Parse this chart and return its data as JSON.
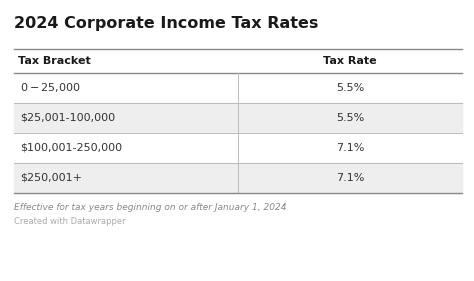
{
  "title": "2024 Corporate Income Tax Rates",
  "col_headers": [
    "Tax Bracket",
    "Tax Rate"
  ],
  "rows": [
    [
      "$0-$25,000",
      "5.5%"
    ],
    [
      "$25,001-100,000",
      "5.5%"
    ],
    [
      "$100,001-250,000",
      "7.1%"
    ],
    [
      "$250,001+",
      "7.1%"
    ]
  ],
  "row_colors": [
    "#ffffff",
    "#eeeeee",
    "#ffffff",
    "#eeeeee"
  ],
  "header_bg": "#ffffff",
  "footer_italic": "Effective for tax years beginning on or after January 1, 2024",
  "footer_plain": "Created with Datawrapper",
  "bg_color": "#ffffff",
  "title_fontsize": 11.5,
  "header_fontsize": 8,
  "cell_fontsize": 8,
  "footer_fontsize": 6.5,
  "footer_plain_fontsize": 6.0,
  "col_split": 0.5
}
